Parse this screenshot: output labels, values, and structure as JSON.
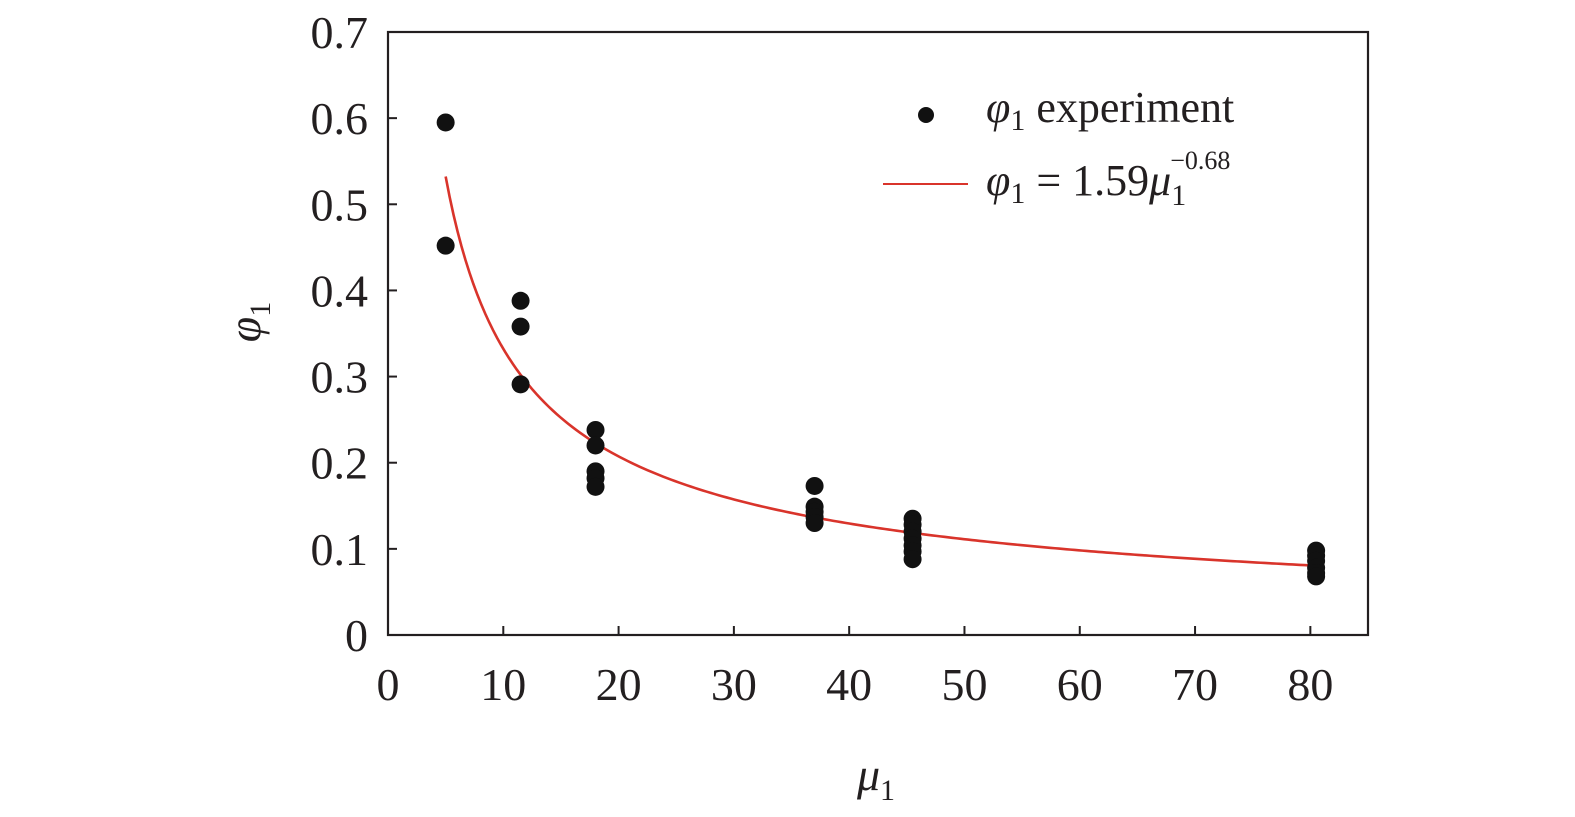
{
  "chart_data": {
    "type": "scatter",
    "xlim": [
      0,
      85
    ],
    "ylim": [
      0,
      0.7
    ],
    "x_ticks": [
      "0",
      "10",
      "20",
      "30",
      "40",
      "50",
      "60",
      "70",
      "80"
    ],
    "y_ticks": [
      "0",
      "0.1",
      "0.2",
      "0.3",
      "0.4",
      "0.5",
      "0.6",
      "0.7"
    ],
    "xlabel": {
      "symbol": "μ",
      "subscript": "1"
    },
    "ylabel": {
      "symbol": "φ",
      "subscript": "1"
    },
    "grid": false,
    "legend_position": "top-right",
    "series": [
      {
        "name": "φ1 experiment",
        "kind": "points",
        "color": "#111111",
        "points": [
          [
            5,
            0.595
          ],
          [
            5,
            0.452
          ],
          [
            11.5,
            0.388
          ],
          [
            11.5,
            0.358
          ],
          [
            11.5,
            0.291
          ],
          [
            18,
            0.238
          ],
          [
            18,
            0.22
          ],
          [
            18,
            0.19
          ],
          [
            18,
            0.182
          ],
          [
            18,
            0.172
          ],
          [
            37,
            0.173
          ],
          [
            37,
            0.149
          ],
          [
            37,
            0.143
          ],
          [
            37,
            0.137
          ],
          [
            37,
            0.13
          ],
          [
            45.5,
            0.135
          ],
          [
            45.5,
            0.128
          ],
          [
            45.5,
            0.12
          ],
          [
            45.5,
            0.112
          ],
          [
            45.5,
            0.104
          ],
          [
            45.5,
            0.097
          ],
          [
            45.5,
            0.088
          ],
          [
            80.5,
            0.098
          ],
          [
            80.5,
            0.092
          ],
          [
            80.5,
            0.086
          ],
          [
            80.5,
            0.078
          ],
          [
            80.5,
            0.072
          ],
          [
            80.5,
            0.068
          ]
        ]
      },
      {
        "name": "φ1 = 1.59μ1−0.68",
        "kind": "fit_curve",
        "color": "#d9342b",
        "equation": {
          "lhs": "φ",
          "lhs_sub": "1",
          "coef": "1.59",
          "var": "μ",
          "var_sub": "1",
          "exponent": "−0.68"
        },
        "model": {
          "a": 1.59,
          "b": -0.68
        },
        "x_range": [
          5,
          80.5
        ]
      }
    ]
  }
}
